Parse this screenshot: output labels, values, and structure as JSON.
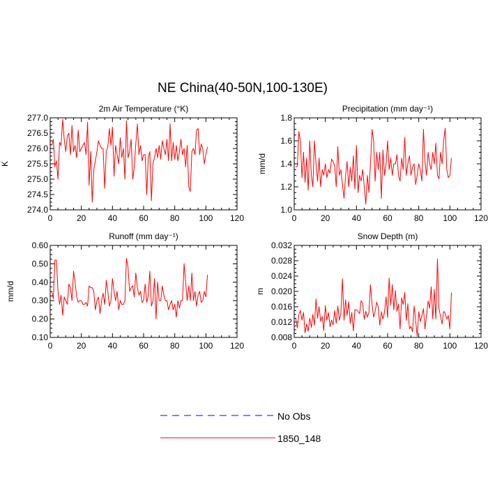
{
  "figure": {
    "title": "NE China(40-50N,100-130E)"
  },
  "legend": {
    "items": [
      {
        "label": "No Obs",
        "color": "#0000ff",
        "dashed": true
      },
      {
        "label": "1850_148",
        "color": "#ff0000",
        "dashed": false
      }
    ]
  },
  "chart_data": [
    {
      "type": "line",
      "title": "2m Air Temperature (°K)",
      "ylabel": "K",
      "xlim": [
        0,
        120
      ],
      "ylim": [
        274.0,
        277.0
      ],
      "xticks": [
        0,
        20,
        40,
        60,
        80,
        100,
        120
      ],
      "yticks": [
        "277.0",
        "276.5",
        "276.0",
        "275.5",
        "275.0",
        "274.5",
        "274.0"
      ],
      "ytick_values": [
        277.0,
        276.5,
        276.0,
        275.5,
        275.0,
        274.5,
        274.0
      ],
      "series": [
        {
          "name": "1850_148",
          "color": "#ff0000",
          "x": [
            1,
            2,
            3,
            4,
            5,
            6,
            7,
            8,
            9,
            10,
            11,
            12,
            13,
            14,
            15,
            16,
            17,
            18,
            19,
            20,
            21,
            22,
            23,
            24,
            25,
            26,
            27,
            28,
            29,
            30,
            31,
            32,
            33,
            34,
            35,
            36,
            37,
            38,
            39,
            40,
            41,
            42,
            43,
            44,
            45,
            46,
            47,
            48,
            49,
            50,
            51,
            52,
            53,
            54,
            55,
            56,
            57,
            58,
            59,
            60,
            61,
            62,
            63,
            64,
            65,
            66,
            67,
            68,
            69,
            70,
            71,
            72,
            73,
            74,
            75,
            76,
            77,
            78,
            79,
            80,
            81,
            82,
            83,
            84,
            85,
            86,
            87,
            88,
            89,
            90,
            91,
            92,
            93,
            94,
            95,
            96,
            97,
            98,
            99,
            100,
            101
          ],
          "y": [
            276.1,
            276.3,
            275.4,
            275.6,
            275.0,
            276.2,
            276.1,
            276.95,
            276.3,
            275.9,
            276.4,
            276.5,
            275.8,
            276.75,
            275.9,
            276.1,
            275.7,
            276.6,
            275.9,
            276.0,
            276.1,
            276.2,
            275.8,
            276.85,
            274.8,
            275.9,
            274.25,
            275.3,
            275.6,
            275.9,
            276.25,
            276.1,
            276.0,
            276.0,
            274.7,
            275.9,
            276.05,
            276.65,
            276.1,
            276.7,
            275.1,
            276.1,
            275.8,
            275.5,
            276.35,
            275.7,
            276.0,
            275.0,
            276.9,
            275.7,
            275.9,
            276.3,
            275.0,
            275.4,
            276.15,
            276.8,
            275.8,
            276.1,
            275.6,
            275.8,
            275.8,
            274.5,
            275.7,
            275.9,
            274.3,
            275.5,
            275.7,
            276.0,
            275.7,
            276.1,
            275.65,
            276.25,
            276.0,
            275.8,
            276.3,
            275.6,
            276.8,
            275.6,
            276.2,
            275.65,
            276.1,
            275.6,
            275.9,
            276.3,
            275.8,
            276.0,
            275.4,
            276.1,
            274.75,
            274.6,
            275.9,
            276.0,
            275.8,
            276.6,
            276.65,
            275.8,
            276.15,
            276.0,
            275.5,
            275.8,
            276.05
          ]
        }
      ]
    },
    {
      "type": "line",
      "title": "Precipitation (mm day⁻¹)",
      "ylabel": "mm/d",
      "xlim": [
        0,
        120
      ],
      "ylim": [
        1.0,
        1.8
      ],
      "xticks": [
        0,
        20,
        40,
        60,
        80,
        100,
        120
      ],
      "yticks": [
        "1.8",
        "1.6",
        "1.4",
        "1.2",
        "1.0"
      ],
      "ytick_values": [
        1.8,
        1.6,
        1.4,
        1.2,
        1.0
      ],
      "series": [
        {
          "name": "1850_148",
          "color": "#ff0000",
          "x": [
            1,
            2,
            3,
            4,
            5,
            6,
            7,
            8,
            9,
            10,
            11,
            12,
            13,
            14,
            15,
            16,
            17,
            18,
            19,
            20,
            21,
            22,
            23,
            24,
            25,
            26,
            27,
            28,
            29,
            30,
            31,
            32,
            33,
            34,
            35,
            36,
            37,
            38,
            39,
            40,
            41,
            42,
            43,
            44,
            45,
            46,
            47,
            48,
            49,
            50,
            51,
            52,
            53,
            54,
            55,
            56,
            57,
            58,
            59,
            60,
            61,
            62,
            63,
            64,
            65,
            66,
            67,
            68,
            69,
            70,
            71,
            72,
            73,
            74,
            75,
            76,
            77,
            78,
            79,
            80,
            81,
            82,
            83,
            84,
            85,
            86,
            87,
            88,
            89,
            90,
            91,
            92,
            93,
            94,
            95,
            96,
            97,
            98,
            99,
            100,
            101
          ],
          "y": [
            1.37,
            1.38,
            1.68,
            1.6,
            1.28,
            1.5,
            1.24,
            1.45,
            1.17,
            1.6,
            1.3,
            1.2,
            1.6,
            1.4,
            1.25,
            1.45,
            1.2,
            1.35,
            1.3,
            1.4,
            1.28,
            1.35,
            1.32,
            1.44,
            1.42,
            1.38,
            1.2,
            1.55,
            1.3,
            1.35,
            1.22,
            1.1,
            1.3,
            1.42,
            1.2,
            1.37,
            1.25,
            1.47,
            1.18,
            1.56,
            1.15,
            1.3,
            1.25,
            1.35,
            1.2,
            1.05,
            1.3,
            1.15,
            1.4,
            1.7,
            1.6,
            1.25,
            1.5,
            1.35,
            1.5,
            1.1,
            1.52,
            1.3,
            1.4,
            1.6,
            1.35,
            1.45,
            1.3,
            1.4,
            1.4,
            1.48,
            1.3,
            1.25,
            1.45,
            1.35,
            1.63,
            1.3,
            1.4,
            1.47,
            1.3,
            1.37,
            1.4,
            1.22,
            1.3,
            1.4,
            1.35,
            1.25,
            1.7,
            1.42,
            1.3,
            1.5,
            1.4,
            1.35,
            1.5,
            1.4,
            1.58,
            1.3,
            1.27,
            1.5,
            1.4,
            1.6,
            1.71,
            1.35,
            1.28,
            1.3,
            1.45
          ]
        }
      ]
    },
    {
      "type": "line",
      "title": "Runoff (mm day⁻¹)",
      "ylabel": "mm/d",
      "xlim": [
        0,
        120
      ],
      "ylim": [
        0.1,
        0.6
      ],
      "xticks": [
        0,
        20,
        40,
        60,
        80,
        100,
        120
      ],
      "yticks": [
        "0.60",
        "0.50",
        "0.40",
        "0.30",
        "0.20",
        "0.10"
      ],
      "ytick_values": [
        0.6,
        0.5,
        0.4,
        0.3,
        0.2,
        0.1
      ],
      "series": [
        {
          "name": "1850_148",
          "color": "#ff0000",
          "x": [
            1,
            2,
            3,
            4,
            5,
            6,
            7,
            8,
            9,
            10,
            11,
            12,
            13,
            14,
            15,
            16,
            17,
            18,
            19,
            20,
            21,
            22,
            23,
            24,
            25,
            26,
            27,
            28,
            29,
            30,
            31,
            32,
            33,
            34,
            35,
            36,
            37,
            38,
            39,
            40,
            41,
            42,
            43,
            44,
            45,
            46,
            47,
            48,
            49,
            50,
            51,
            52,
            53,
            54,
            55,
            56,
            57,
            58,
            59,
            60,
            61,
            62,
            63,
            64,
            65,
            66,
            67,
            68,
            69,
            70,
            71,
            72,
            73,
            74,
            75,
            76,
            77,
            78,
            79,
            80,
            81,
            82,
            83,
            84,
            85,
            86,
            87,
            88,
            89,
            90,
            91,
            92,
            93,
            94,
            95,
            96,
            97,
            98,
            99,
            100,
            101
          ],
          "y": [
            0.35,
            0.31,
            0.52,
            0.52,
            0.35,
            0.28,
            0.33,
            0.22,
            0.32,
            0.3,
            0.28,
            0.39,
            0.37,
            0.3,
            0.46,
            0.4,
            0.32,
            0.29,
            0.3,
            0.3,
            0.28,
            0.28,
            0.29,
            0.27,
            0.38,
            0.37,
            0.37,
            0.35,
            0.25,
            0.3,
            0.32,
            0.23,
            0.3,
            0.34,
            0.28,
            0.41,
            0.35,
            0.27,
            0.3,
            0.42,
            0.35,
            0.3,
            0.35,
            0.25,
            0.3,
            0.28,
            0.28,
            0.3,
            0.53,
            0.48,
            0.35,
            0.37,
            0.38,
            0.32,
            0.45,
            0.37,
            0.33,
            0.35,
            0.29,
            0.3,
            0.39,
            0.29,
            0.33,
            0.46,
            0.27,
            0.3,
            0.42,
            0.2,
            0.4,
            0.3,
            0.3,
            0.38,
            0.33,
            0.3,
            0.3,
            0.25,
            0.28,
            0.3,
            0.25,
            0.28,
            0.21,
            0.3,
            0.26,
            0.3,
            0.3,
            0.5,
            0.4,
            0.3,
            0.38,
            0.3,
            0.45,
            0.3,
            0.35,
            0.27,
            0.33,
            0.35,
            0.29,
            0.3,
            0.35,
            0.32,
            0.44
          ]
        }
      ]
    },
    {
      "type": "line",
      "title": "Snow Depth (m)",
      "ylabel": "m",
      "xlim": [
        0,
        120
      ],
      "ylim": [
        0.008,
        0.032
      ],
      "xticks": [
        0,
        20,
        40,
        60,
        80,
        100,
        120
      ],
      "yticks": [
        "0.032",
        "0.028",
        "0.024",
        "0.020",
        "0.016",
        "0.012",
        "0.008"
      ],
      "ytick_values": [
        0.032,
        0.028,
        0.024,
        0.02,
        0.016,
        0.012,
        0.008
      ],
      "series": [
        {
          "name": "1850_148",
          "color": "#ff0000",
          "x": [
            1,
            2,
            3,
            4,
            5,
            6,
            7,
            8,
            9,
            10,
            11,
            12,
            13,
            14,
            15,
            16,
            17,
            18,
            19,
            20,
            21,
            22,
            23,
            24,
            25,
            26,
            27,
            28,
            29,
            30,
            31,
            32,
            33,
            34,
            35,
            36,
            37,
            38,
            39,
            40,
            41,
            42,
            43,
            44,
            45,
            46,
            47,
            48,
            49,
            50,
            51,
            52,
            53,
            54,
            55,
            56,
            57,
            58,
            59,
            60,
            61,
            62,
            63,
            64,
            65,
            66,
            67,
            68,
            69,
            70,
            71,
            72,
            73,
            74,
            75,
            76,
            77,
            78,
            79,
            80,
            81,
            82,
            83,
            84,
            85,
            86,
            87,
            88,
            89,
            90,
            91,
            92,
            93,
            94,
            95,
            96,
            97,
            98,
            99,
            100,
            101
          ],
          "y": [
            0.013,
            0.0105,
            0.014,
            0.015,
            0.0125,
            0.0145,
            0.0092,
            0.0115,
            0.0096,
            0.013,
            0.0106,
            0.014,
            0.0112,
            0.018,
            0.013,
            0.016,
            0.0122,
            0.0135,
            0.0098,
            0.0163,
            0.0125,
            0.0145,
            0.0108,
            0.0125,
            0.0113,
            0.015,
            0.0117,
            0.0162,
            0.0125,
            0.0142,
            0.0233,
            0.0125,
            0.0178,
            0.0137,
            0.0173,
            0.0116,
            0.0145,
            0.0097,
            0.0152,
            0.0152,
            0.0148,
            0.0142,
            0.0176,
            0.0168,
            0.0127,
            0.0148,
            0.0133,
            0.0146,
            0.0217,
            0.0166,
            0.0133,
            0.0148,
            0.0172,
            0.0158,
            0.0112,
            0.0147,
            0.0128,
            0.0145,
            0.0186,
            0.0132,
            0.0235,
            0.0164,
            0.0218,
            0.0152,
            0.0202,
            0.0148,
            0.0167,
            0.0102,
            0.0183,
            0.0166,
            0.0197,
            0.0124,
            0.0168,
            0.0102,
            0.0109,
            0.0095,
            0.0162,
            0.0125,
            0.0083,
            0.0147,
            0.0122,
            0.0135,
            0.0155,
            0.0102,
            0.0138,
            0.0175,
            0.0156,
            0.0212,
            0.0128,
            0.0205,
            0.0128,
            0.0285,
            0.0155,
            0.0135,
            0.0115,
            0.0148,
            0.0143,
            0.0128,
            0.0137,
            0.0102,
            0.0197
          ]
        }
      ]
    }
  ]
}
